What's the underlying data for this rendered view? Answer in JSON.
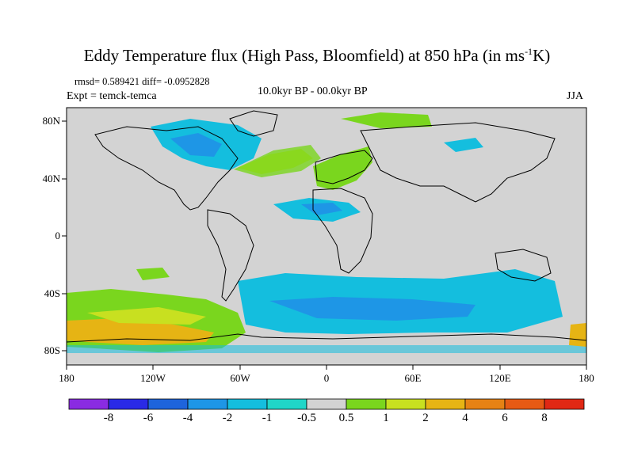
{
  "title": {
    "main": "Eddy Temperature flux (High Pass, Bloomfield) at 850 hPa (in ms",
    "sup": "-1",
    "tail": "K)"
  },
  "stats": {
    "rmsd_diff": "rmsd= 0.589421 diff= -0.0952828",
    "expt": "Expt = temck-temca",
    "period": "10.0kyr BP - 00.0kyr BP",
    "season": "JJA"
  },
  "axes": {
    "x_ticks": [
      "180",
      "120W",
      "60W",
      "0",
      "60E",
      "120E",
      "180"
    ],
    "y_ticks": [
      "80N",
      "40N",
      "0",
      "40S",
      "80S"
    ]
  },
  "colorbar": {
    "labels": [
      "-8",
      "-6",
      "-4",
      "-2",
      "-1",
      "-0.5",
      "0.5",
      "1",
      "2",
      "4",
      "6",
      "8"
    ],
    "colors": [
      "#8a2be2",
      "#2a2ae6",
      "#1e64dc",
      "#1e96e6",
      "#14bede",
      "#20d6c8",
      "#d3d3d3",
      "#7ad61e",
      "#c8e020",
      "#e6b414",
      "#e68214",
      "#e65a14",
      "#e02814"
    ]
  },
  "map_colors": {
    "land_bg": "#d3d3d3",
    "coast": "#000000"
  }
}
